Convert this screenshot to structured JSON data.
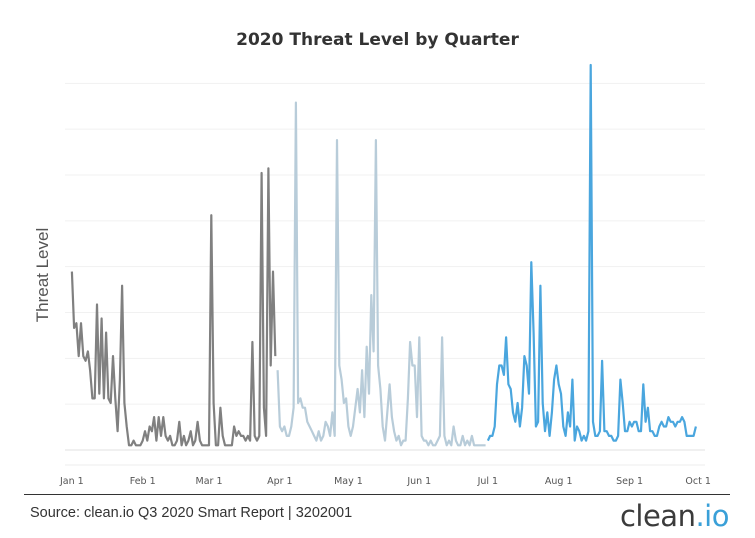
{
  "chart_data": {
    "type": "line",
    "title": "2020 Threat Level by Quarter",
    "xlabel": "",
    "ylabel": "Threat Level",
    "x_ticks": [
      "Jan 1",
      "Feb 1",
      "Mar 1",
      "Apr 1",
      "May 1",
      "Jun 1",
      "Jul 1",
      "Aug 1",
      "Sep 1",
      "Oct 1"
    ],
    "x_tick_days": [
      0,
      31,
      60,
      91,
      121,
      152,
      182,
      213,
      244,
      274
    ],
    "xlim": [
      -3,
      277
    ],
    "ylim": [
      0,
      82
    ],
    "grid": true,
    "legend": "none",
    "series": [
      {
        "color": "#808080",
        "points": [
          [
            0,
            38
          ],
          [
            1,
            26
          ],
          [
            2,
            27
          ],
          [
            3,
            20
          ],
          [
            4,
            27
          ],
          [
            5,
            20
          ],
          [
            6,
            19
          ],
          [
            7,
            21
          ],
          [
            8,
            17
          ],
          [
            9,
            11
          ],
          [
            10,
            11
          ],
          [
            11,
            31
          ],
          [
            12,
            12
          ],
          [
            13,
            28
          ],
          [
            14,
            11
          ],
          [
            15,
            25
          ],
          [
            16,
            11
          ],
          [
            17,
            10
          ],
          [
            18,
            20
          ],
          [
            19,
            11
          ],
          [
            20,
            4
          ],
          [
            21,
            15
          ],
          [
            22,
            35
          ],
          [
            23,
            10
          ],
          [
            24,
            5
          ],
          [
            25,
            1
          ],
          [
            26,
            1
          ],
          [
            27,
            2
          ],
          [
            28,
            1
          ],
          [
            29,
            1
          ],
          [
            30,
            1
          ],
          [
            31,
            2
          ],
          [
            32,
            4
          ],
          [
            33,
            2
          ],
          [
            34,
            5
          ],
          [
            35,
            4
          ],
          [
            36,
            7
          ],
          [
            37,
            2
          ],
          [
            38,
            7
          ],
          [
            39,
            3
          ],
          [
            40,
            7
          ],
          [
            41,
            3
          ],
          [
            42,
            2
          ],
          [
            43,
            3
          ],
          [
            44,
            1
          ],
          [
            45,
            1
          ],
          [
            46,
            2
          ],
          [
            47,
            6
          ],
          [
            48,
            1
          ],
          [
            49,
            3
          ],
          [
            50,
            1
          ],
          [
            51,
            2
          ],
          [
            52,
            4
          ],
          [
            53,
            1
          ],
          [
            54,
            2
          ],
          [
            55,
            6
          ],
          [
            56,
            2
          ],
          [
            57,
            1
          ],
          [
            58,
            1
          ],
          [
            59,
            1
          ],
          [
            60,
            1
          ],
          [
            61,
            50
          ],
          [
            62,
            10
          ],
          [
            63,
            1
          ],
          [
            64,
            1
          ],
          [
            65,
            9
          ],
          [
            66,
            3
          ],
          [
            67,
            1
          ],
          [
            68,
            1
          ],
          [
            69,
            1
          ],
          [
            70,
            1
          ],
          [
            71,
            5
          ],
          [
            72,
            3
          ],
          [
            73,
            4
          ],
          [
            74,
            3
          ],
          [
            75,
            3
          ],
          [
            76,
            2
          ],
          [
            77,
            3
          ],
          [
            78,
            2
          ],
          [
            79,
            23
          ],
          [
            80,
            3
          ],
          [
            81,
            2
          ],
          [
            82,
            3
          ],
          [
            83,
            59
          ],
          [
            84,
            9
          ],
          [
            85,
            3
          ],
          [
            86,
            60
          ],
          [
            87,
            18
          ],
          [
            88,
            38
          ],
          [
            89,
            20
          ]
        ]
      },
      {
        "color": "#b8ccd9",
        "points": [
          [
            90,
            17
          ],
          [
            91,
            5
          ],
          [
            92,
            4
          ],
          [
            93,
            5
          ],
          [
            94,
            3
          ],
          [
            95,
            3
          ],
          [
            96,
            5
          ],
          [
            97,
            9
          ],
          [
            98,
            74
          ],
          [
            99,
            10
          ],
          [
            100,
            11
          ],
          [
            101,
            9
          ],
          [
            102,
            9
          ],
          [
            103,
            6
          ],
          [
            104,
            5
          ],
          [
            105,
            4
          ],
          [
            106,
            3
          ],
          [
            107,
            2
          ],
          [
            108,
            4
          ],
          [
            109,
            2
          ],
          [
            110,
            3
          ],
          [
            111,
            6
          ],
          [
            112,
            5
          ],
          [
            113,
            3
          ],
          [
            114,
            8
          ],
          [
            115,
            3
          ],
          [
            116,
            66
          ],
          [
            117,
            18
          ],
          [
            118,
            15
          ],
          [
            119,
            10
          ],
          [
            120,
            11
          ],
          [
            121,
            5
          ],
          [
            122,
            3
          ],
          [
            123,
            5
          ],
          [
            124,
            9
          ],
          [
            125,
            13
          ],
          [
            126,
            8
          ],
          [
            127,
            17
          ],
          [
            128,
            7
          ],
          [
            129,
            22
          ],
          [
            130,
            12
          ],
          [
            131,
            33
          ],
          [
            132,
            21
          ],
          [
            133,
            66
          ],
          [
            134,
            18
          ],
          [
            135,
            13
          ],
          [
            136,
            5
          ],
          [
            137,
            2
          ],
          [
            138,
            8
          ],
          [
            139,
            14
          ],
          [
            140,
            7
          ],
          [
            141,
            4
          ],
          [
            142,
            2
          ],
          [
            143,
            3
          ],
          [
            144,
            1
          ],
          [
            145,
            2
          ],
          [
            146,
            2
          ],
          [
            147,
            11
          ],
          [
            148,
            23
          ],
          [
            149,
            18
          ],
          [
            150,
            18
          ],
          [
            151,
            7
          ],
          [
            152,
            24
          ],
          [
            153,
            3
          ],
          [
            154,
            2
          ],
          [
            155,
            2
          ],
          [
            156,
            1
          ],
          [
            157,
            2
          ],
          [
            158,
            1
          ],
          [
            159,
            1
          ],
          [
            160,
            2
          ],
          [
            161,
            3
          ],
          [
            162,
            24
          ],
          [
            163,
            3
          ],
          [
            164,
            1
          ],
          [
            165,
            2
          ],
          [
            166,
            1
          ],
          [
            167,
            5
          ],
          [
            168,
            2
          ],
          [
            169,
            1
          ],
          [
            170,
            1
          ],
          [
            171,
            3
          ],
          [
            172,
            1
          ],
          [
            173,
            2
          ],
          [
            174,
            1
          ],
          [
            175,
            3
          ],
          [
            176,
            1
          ],
          [
            177,
            1
          ],
          [
            178,
            1
          ],
          [
            179,
            1
          ],
          [
            180,
            1
          ],
          [
            181,
            1
          ]
        ]
      },
      {
        "color": "#4aa6de",
        "points": [
          [
            182,
            2
          ],
          [
            183,
            3
          ],
          [
            184,
            3
          ],
          [
            185,
            5
          ],
          [
            186,
            14
          ],
          [
            187,
            18
          ],
          [
            188,
            18
          ],
          [
            189,
            16
          ],
          [
            190,
            24
          ],
          [
            191,
            14
          ],
          [
            192,
            13
          ],
          [
            193,
            8
          ],
          [
            194,
            6
          ],
          [
            195,
            10
          ],
          [
            196,
            5
          ],
          [
            197,
            9
          ],
          [
            198,
            20
          ],
          [
            199,
            18
          ],
          [
            200,
            12
          ],
          [
            201,
            40
          ],
          [
            202,
            25
          ],
          [
            203,
            5
          ],
          [
            204,
            6
          ],
          [
            205,
            35
          ],
          [
            206,
            10
          ],
          [
            207,
            4
          ],
          [
            208,
            8
          ],
          [
            209,
            3
          ],
          [
            210,
            8
          ],
          [
            211,
            15
          ],
          [
            212,
            18
          ],
          [
            213,
            14
          ],
          [
            214,
            12
          ],
          [
            215,
            5
          ],
          [
            216,
            3
          ],
          [
            217,
            8
          ],
          [
            218,
            5
          ],
          [
            219,
            15
          ],
          [
            220,
            2
          ],
          [
            221,
            5
          ],
          [
            222,
            4
          ],
          [
            223,
            2
          ],
          [
            224,
            3
          ],
          [
            225,
            2
          ],
          [
            226,
            4
          ],
          [
            227,
            82
          ],
          [
            228,
            6
          ],
          [
            229,
            3
          ],
          [
            230,
            3
          ],
          [
            231,
            4
          ],
          [
            232,
            19
          ],
          [
            233,
            4
          ],
          [
            234,
            4
          ],
          [
            235,
            3
          ],
          [
            236,
            3
          ],
          [
            237,
            2
          ],
          [
            238,
            2
          ],
          [
            239,
            3
          ],
          [
            240,
            15
          ],
          [
            241,
            10
          ],
          [
            242,
            4
          ],
          [
            243,
            4
          ],
          [
            244,
            6
          ],
          [
            245,
            5
          ],
          [
            246,
            6
          ],
          [
            247,
            6
          ],
          [
            248,
            4
          ],
          [
            249,
            4
          ],
          [
            250,
            14
          ],
          [
            251,
            6
          ],
          [
            252,
            9
          ],
          [
            253,
            4
          ],
          [
            254,
            4
          ],
          [
            255,
            3
          ],
          [
            256,
            3
          ],
          [
            257,
            5
          ],
          [
            258,
            6
          ],
          [
            259,
            5
          ],
          [
            260,
            5
          ],
          [
            261,
            7
          ],
          [
            262,
            6
          ],
          [
            263,
            6
          ],
          [
            264,
            5
          ],
          [
            265,
            6
          ],
          [
            266,
            6
          ],
          [
            267,
            7
          ],
          [
            268,
            6
          ],
          [
            269,
            3
          ],
          [
            270,
            3
          ],
          [
            271,
            3
          ],
          [
            272,
            3
          ],
          [
            273,
            5
          ]
        ]
      }
    ]
  },
  "footer": {
    "source": "Source: clean.io Q3 2020 Smart Report | 3202001",
    "logo_part1": "clean",
    "logo_part2": ".io"
  }
}
